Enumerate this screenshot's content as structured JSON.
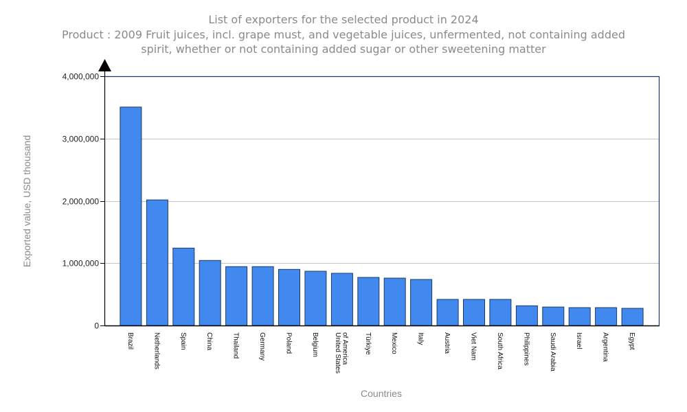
{
  "chart_data": {
    "type": "bar",
    "title": "List of exporters for the selected product in 2024",
    "subtitle_lines": [
      "Product : 2009 Fruit juices, incl. grape must, and vegetable juices, unfermented, not containing added",
      "spirit, whether or not containing added sugar or other sweetening matter"
    ],
    "xlabel": "Countries",
    "ylabel": "Exported value, USD thousand",
    "ylim": [
      0,
      4000000
    ],
    "yticks": [
      0,
      1000000,
      2000000,
      3000000,
      4000000
    ],
    "ytick_labels": [
      "0",
      "1,000,000",
      "2,000,000",
      "3,000,000",
      "4,000,000"
    ],
    "grid": true,
    "legend": "none",
    "colors": {
      "bar_fill": "#4189ee",
      "bar_stroke": "#1b3a63",
      "frame": "#1b3a63",
      "grid": "#c4c4c4",
      "axis": "#000000"
    },
    "categories": [
      "Brazil",
      "Netherlands",
      "Spain",
      "China",
      "Thailand",
      "Germany",
      "Poland",
      "Belgium",
      "United States of America",
      "Türkiye",
      "Mexico",
      "Italy",
      "Austria",
      "Viet Nam",
      "South Africa",
      "Philippines",
      "Saudi Arabia",
      "Israel",
      "Argentina",
      "Egypt"
    ],
    "category_label_lines": [
      [
        "Brazil"
      ],
      [
        "Netherlands"
      ],
      [
        "Spain"
      ],
      [
        "China"
      ],
      [
        "Thailand"
      ],
      [
        "Germany"
      ],
      [
        "Poland"
      ],
      [
        "Belgium"
      ],
      [
        "United States",
        "of America"
      ],
      [
        "Türkiye"
      ],
      [
        "Mexico"
      ],
      [
        "Italy"
      ],
      [
        "Austria"
      ],
      [
        "Viet Nam"
      ],
      [
        "South Africa"
      ],
      [
        "Philippines"
      ],
      [
        "Saudi Arabia"
      ],
      [
        "Israel"
      ],
      [
        "Argentina"
      ],
      [
        "Egypt"
      ]
    ],
    "values": [
      3505000,
      2015000,
      1242000,
      1044000,
      944000,
      944000,
      900000,
      870000,
      837000,
      771000,
      760000,
      738000,
      419000,
      419000,
      419000,
      316000,
      296000,
      287000,
      287000,
      276000
    ]
  }
}
